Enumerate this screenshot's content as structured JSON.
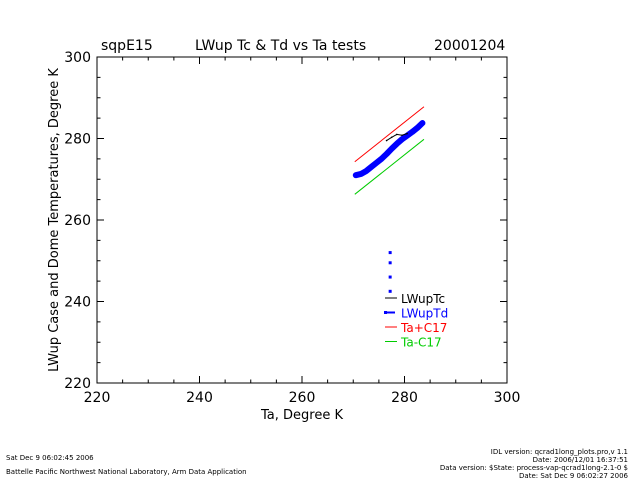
{
  "header": {
    "site": "sqpE15",
    "title": "LWup Tc & Td vs Ta tests",
    "date": "20001204"
  },
  "footer": {
    "left_line1": "Sat Dec  9 06:02:45 2006",
    "left_line2": "Battelle Pacific Northwest National Laboratory, Arm Data Application",
    "right_line1": "IDL version: qcrad1long_plots.pro,v 1.1",
    "right_line2": "Date: 2006/12/01 16:37:51",
    "right_line3": "Data version: $State: process-vap-qcrad1long-2.1-0 $",
    "right_line4": "Date: Sat Dec  9 06:02:27 2006"
  },
  "chart_data": {
    "type": "line",
    "title": "LWup Tc & Td vs Ta tests",
    "xlabel": "Ta, Degree K",
    "ylabel": "LWup Case and Dome Temperatures, Degree K",
    "xlim": [
      220,
      300
    ],
    "ylim": [
      220,
      300
    ],
    "x_ticks": [
      220,
      240,
      260,
      280,
      300
    ],
    "y_ticks": [
      220,
      240,
      260,
      280,
      300
    ],
    "grid": false,
    "legend_position": "lower-right",
    "legend": [
      {
        "label": "LWupTc",
        "color": "#000000",
        "style": "line"
      },
      {
        "label": "LWupTd",
        "color": "#0000ff",
        "style": "dashed-points"
      },
      {
        "label": "Ta+C17",
        "color": "#ff0000",
        "style": "line"
      },
      {
        "label": "Ta-C17",
        "color": "#00cc00",
        "style": "line"
      }
    ],
    "series": [
      {
        "name": "LWupTc",
        "color": "#000000",
        "x": [
          276.5,
          277.5,
          278.5,
          279.5,
          280.5
        ],
        "y": [
          279.5,
          280.3,
          281.0,
          280.8,
          281.2
        ]
      },
      {
        "name": "LWupTd",
        "color": "#0000ff",
        "x": [
          270.5,
          271.5,
          272.5,
          273.5,
          274.5,
          275.5,
          276.5,
          277.5,
          278.5,
          279.5,
          280.5,
          281.5,
          282.5,
          283.5,
          277.2,
          277.2,
          277.2,
          277.2
        ],
        "y": [
          271.0,
          271.3,
          272.0,
          273.0,
          274.0,
          275.0,
          276.2,
          277.5,
          278.7,
          279.8,
          280.7,
          281.6,
          282.6,
          283.8,
          252.0,
          249.5,
          246.0,
          242.5
        ]
      },
      {
        "name": "Ta+C17",
        "color": "#ff0000",
        "x": [
          270.3,
          283.8
        ],
        "y": [
          274.3,
          287.8
        ]
      },
      {
        "name": "Ta-C17",
        "color": "#00cc00",
        "x": [
          270.3,
          283.8
        ],
        "y": [
          266.3,
          279.8
        ]
      }
    ]
  }
}
